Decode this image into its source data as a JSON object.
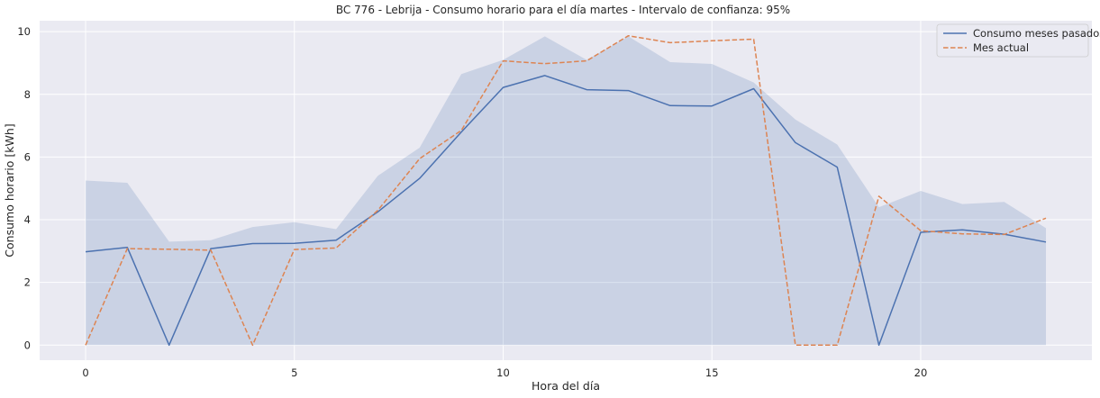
{
  "chart_data": {
    "type": "line",
    "title": "BC 776 - Lebrija - Consumo horario para el día martes - Intervalo de confianza: 95%",
    "xlabel": "Hora del día",
    "ylabel": "Consumo horario [kWh]",
    "xlim": [
      -1.1,
      24.1
    ],
    "ylim": [
      -0.48,
      10.35
    ],
    "xticks": [
      0,
      5,
      10,
      15,
      20
    ],
    "yticks": [
      0,
      2,
      4,
      6,
      8,
      10
    ],
    "grid": true,
    "legend_position": "top-right",
    "x": [
      0,
      1,
      2,
      3,
      4,
      5,
      6,
      7,
      8,
      9,
      10,
      11,
      12,
      13,
      14,
      15,
      16,
      17,
      18,
      19,
      20,
      21,
      22,
      23
    ],
    "series": [
      {
        "name": "Consumo meses pasados",
        "style": "solid",
        "color": "#4c72b0",
        "values": [
          2.98,
          3.12,
          0.0,
          3.08,
          3.24,
          3.25,
          3.35,
          4.25,
          5.32,
          6.8,
          8.22,
          8.6,
          8.15,
          8.12,
          7.64,
          7.63,
          8.18,
          6.46,
          5.68,
          0.0,
          3.6,
          3.68,
          3.54,
          3.29
        ],
        "ci_lower": [
          0,
          0,
          0,
          0,
          0,
          0,
          0,
          0,
          0,
          0,
          0,
          0,
          0,
          0,
          0,
          0,
          0,
          0,
          0,
          0,
          0,
          0,
          0,
          0
        ],
        "ci_upper": [
          5.25,
          5.18,
          3.3,
          3.35,
          3.77,
          3.92,
          3.7,
          5.4,
          6.3,
          8.65,
          9.1,
          9.85,
          9.1,
          9.85,
          9.03,
          8.97,
          8.38,
          7.2,
          6.4,
          4.4,
          4.92,
          4.5,
          4.57,
          3.73
        ]
      },
      {
        "name": "Mes actual",
        "style": "dashed",
        "color": "#dd8452",
        "values": [
          0.0,
          3.08,
          3.06,
          3.03,
          0.0,
          3.05,
          3.1,
          4.3,
          5.95,
          6.85,
          9.07,
          8.98,
          9.07,
          9.87,
          9.65,
          9.71,
          9.76,
          0.0,
          0.0,
          4.75,
          3.65,
          3.55,
          3.53,
          4.05
        ]
      }
    ],
    "colors": {
      "plot_background": "#eaeaf2",
      "grid": "#ffffff",
      "ci_fill": "#4c72b0"
    }
  }
}
